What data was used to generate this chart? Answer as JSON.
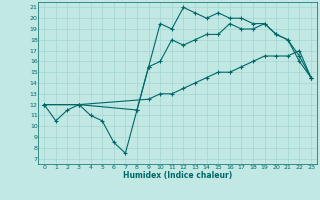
{
  "xlabel": "Humidex (Indice chaleur)",
  "bg_color": "#c2e8e4",
  "line_color": "#006868",
  "grid_color": "#a8d8d4",
  "xlim": [
    -0.5,
    23.5
  ],
  "ylim": [
    6.5,
    21.5
  ],
  "xticks": [
    0,
    1,
    2,
    3,
    4,
    5,
    6,
    7,
    8,
    9,
    10,
    11,
    12,
    13,
    14,
    15,
    16,
    17,
    18,
    19,
    20,
    21,
    22,
    23
  ],
  "yticks": [
    7,
    8,
    9,
    10,
    11,
    12,
    13,
    14,
    15,
    16,
    17,
    18,
    19,
    20,
    21
  ],
  "line1_x": [
    0,
    1,
    2,
    3,
    4,
    5,
    6,
    7,
    8,
    9,
    10,
    11,
    12,
    13,
    14,
    15,
    16,
    17,
    18,
    19,
    20,
    21,
    22,
    23
  ],
  "line1_y": [
    12,
    10.5,
    11.5,
    12,
    11,
    10.5,
    8.5,
    7.5,
    11.5,
    15.5,
    19.5,
    19,
    21,
    20.5,
    20,
    20.5,
    20,
    20,
    19.5,
    19.5,
    18.5,
    18,
    16,
    14.5
  ],
  "line2_x": [
    0,
    3,
    9,
    10,
    11,
    12,
    13,
    14,
    15,
    16,
    17,
    18,
    19,
    20,
    21,
    22,
    23
  ],
  "line2_y": [
    12,
    12,
    12.5,
    13,
    13,
    13.5,
    14,
    14.5,
    15,
    15,
    15.5,
    16,
    16.5,
    16.5,
    16.5,
    17,
    14.5
  ],
  "line3_x": [
    0,
    3,
    8,
    9,
    10,
    11,
    12,
    13,
    14,
    15,
    16,
    17,
    18,
    19,
    20,
    21,
    22,
    23
  ],
  "line3_y": [
    12,
    12,
    11.5,
    15.5,
    16,
    18,
    17.5,
    18,
    18.5,
    18.5,
    19.5,
    19,
    19,
    19.5,
    18.5,
    18,
    16.5,
    14.5
  ]
}
